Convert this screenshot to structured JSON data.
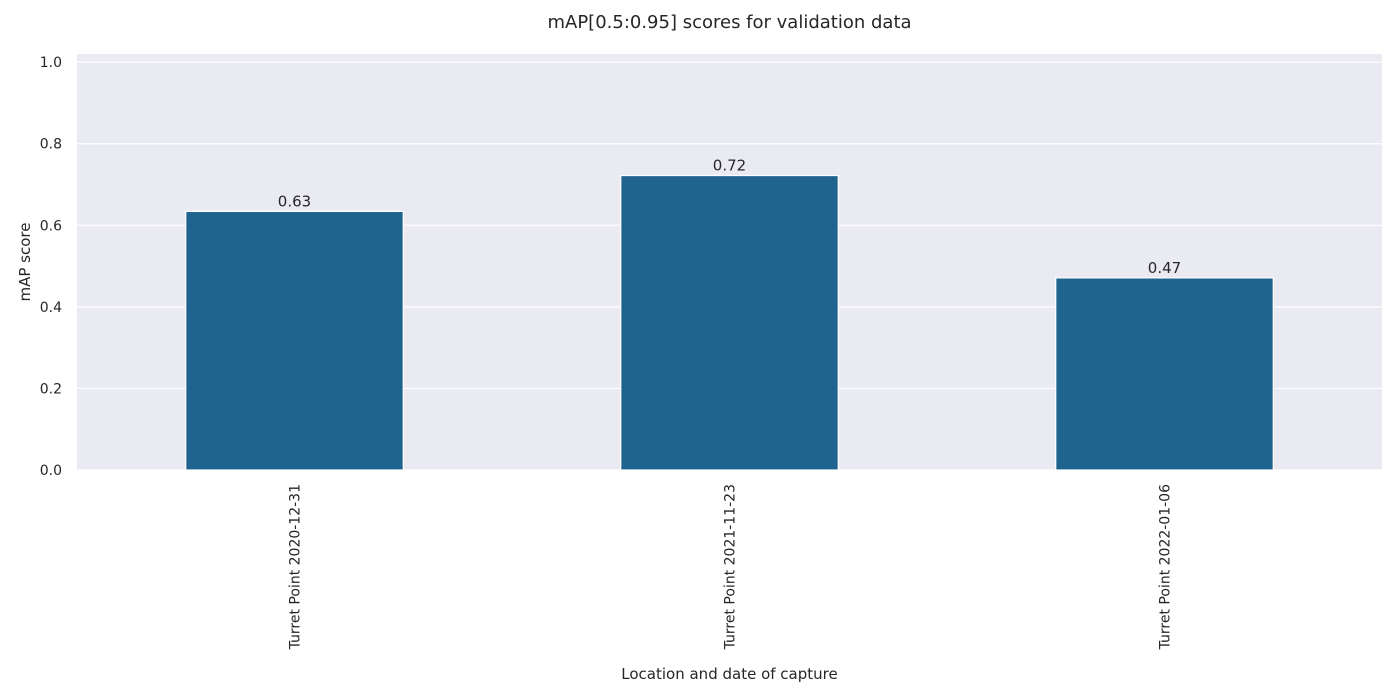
{
  "chart_data": {
    "type": "bar",
    "title": "mAP[0.5:0.95] scores for validation data",
    "xlabel": "Location and date of capture",
    "ylabel": "mAP score",
    "categories": [
      "Turret Point 2020-12-31",
      "Turret Point 2021-11-23",
      "Turret Point 2022-01-06"
    ],
    "values": [
      0.634,
      0.722,
      0.471
    ],
    "data_labels": [
      "0.63",
      "0.72",
      "0.47"
    ],
    "ylim": [
      0.0,
      1.02
    ],
    "yticks": [
      0.0,
      0.2,
      0.4,
      0.6,
      0.8,
      1.0
    ],
    "ytick_labels": [
      "0.0",
      "0.2",
      "0.4",
      "0.6",
      "0.8",
      "1.0"
    ],
    "grid": true,
    "colors": {
      "bar": "#1f638f",
      "plot_background": "#eaeaf2",
      "grid": "#ffffff",
      "text": "#262626"
    }
  }
}
